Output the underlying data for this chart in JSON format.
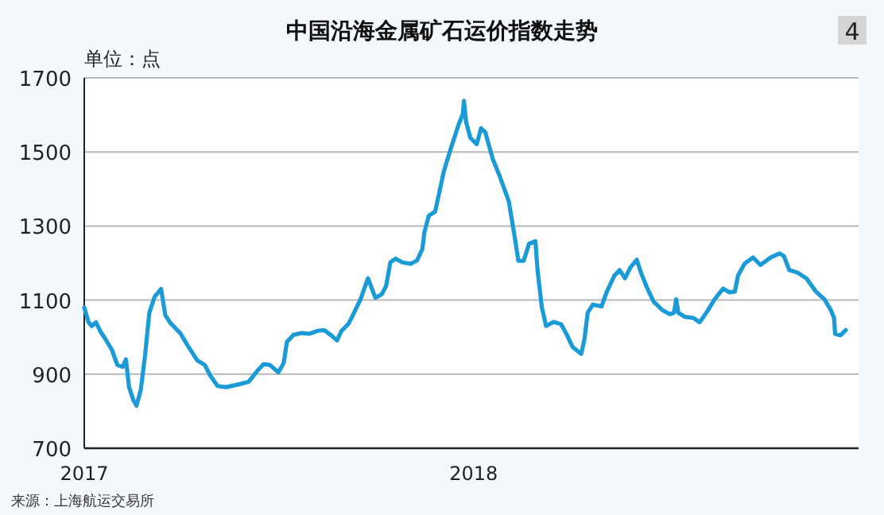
{
  "chart_data": {
    "type": "line",
    "title": "中国沿海金属矿石运价指数走势",
    "ylabel": "单位：点",
    "annotations": [
      "4",
      "来源：上海航运交易所"
    ],
    "x": [
      "2017-01-01",
      "2017-01-05",
      "2017-01-08",
      "2017-01-12",
      "2017-01-16",
      "2017-01-21",
      "2017-01-27",
      "2017-02-01",
      "2017-02-06",
      "2017-02-09",
      "2017-02-12",
      "2017-02-16",
      "2017-02-19",
      "2017-02-23",
      "2017-02-27",
      "2017-03-03",
      "2017-03-08",
      "2017-03-14",
      "2017-03-18",
      "2017-03-23",
      "2017-04-01",
      "2017-04-08",
      "2017-04-17",
      "2017-04-24",
      "2017-04-29",
      "2017-05-06",
      "2017-05-14",
      "2017-05-25",
      "2017-06-04",
      "2017-06-12",
      "2017-06-18",
      "2017-06-24",
      "2017-07-02",
      "2017-07-07",
      "2017-07-10",
      "2017-07-16",
      "2017-07-24",
      "2017-07-31",
      "2017-08-08",
      "2017-08-14",
      "2017-08-20",
      "2017-08-26",
      "2017-08-30",
      "2017-09-06",
      "2017-09-11",
      "2017-09-17",
      "2017-09-24",
      "2017-10-01",
      "2017-10-07",
      "2017-10-11",
      "2017-10-15",
      "2017-10-20",
      "2017-10-26",
      "2017-11-03",
      "2017-11-09",
      "2017-11-14",
      "2017-11-16",
      "2017-11-20",
      "2017-11-26",
      "2017-12-04",
      "2017-12-10",
      "2017-12-18",
      "2017-12-22",
      "2017-12-23",
      "2017-12-25",
      "2017-12-29",
      "2018-01-04",
      "2018-01-08",
      "2018-01-12",
      "2018-01-19",
      "2018-01-26",
      "2018-02-03",
      "2018-02-08",
      "2018-02-12",
      "2018-02-17",
      "2018-02-22",
      "2018-02-28",
      "2018-03-02",
      "2018-03-06",
      "2018-03-10",
      "2018-03-17",
      "2018-03-24",
      "2018-03-29",
      "2018-04-04",
      "2018-04-12",
      "2018-04-15",
      "2018-04-18",
      "2018-04-23",
      "2018-05-01",
      "2018-05-06",
      "2018-05-13",
      "2018-05-18",
      "2018-05-23",
      "2018-05-28",
      "2018-06-03",
      "2018-06-07",
      "2018-06-13",
      "2018-06-19",
      "2018-06-27",
      "2018-07-04",
      "2018-07-08",
      "2018-07-10",
      "2018-07-12",
      "2018-07-18",
      "2018-07-26",
      "2018-08-01",
      "2018-08-08",
      "2018-08-15",
      "2018-08-23",
      "2018-08-29",
      "2018-09-03",
      "2018-09-06",
      "2018-09-12",
      "2018-09-20",
      "2018-09-27",
      "2018-10-07",
      "2018-10-15",
      "2018-10-19",
      "2018-10-24",
      "2018-11-01",
      "2018-11-09",
      "2018-11-18",
      "2018-11-26",
      "2018-12-02",
      "2018-12-05",
      "2018-12-06",
      "2018-12-11",
      "2018-12-16"
    ],
    "series": [
      {
        "color": "#1a9ad6",
        "values": [
          1080,
          1040,
          1030,
          1040,
          1016,
          994,
          965,
          925,
          920,
          940,
          865,
          830,
          815,
          858,
          951,
          1066,
          1109,
          1130,
          1059,
          1037,
          1011,
          977,
          937,
          925,
          897,
          868,
          865,
          872,
          879,
          908,
          927,
          925,
          905,
          930,
          987,
          1006,
          1011,
          1009,
          1017,
          1019,
          1006,
          991,
          1016,
          1037,
          1066,
          1102,
          1159,
          1106,
          1116,
          1138,
          1202,
          1212,
          1202,
          1198,
          1207,
          1238,
          1284,
          1328,
          1339,
          1446,
          1503,
          1574,
          1603,
          1638,
          1581,
          1538,
          1521,
          1564,
          1553,
          1481,
          1431,
          1367,
          1281,
          1206,
          1206,
          1252,
          1259,
          1181,
          1081,
          1030,
          1041,
          1035,
          1009,
          973,
          955,
          995,
          1066,
          1088,
          1083,
          1123,
          1166,
          1181,
          1159,
          1188,
          1209,
          1174,
          1131,
          1095,
          1073,
          1062,
          1066,
          1102,
          1066,
          1055,
          1052,
          1040,
          1069,
          1102,
          1131,
          1121,
          1123,
          1166,
          1198,
          1215,
          1195,
          1216,
          1226,
          1219,
          1181,
          1174,
          1159,
          1123,
          1102,
          1073,
          1052,
          1009,
          1005,
          1019
        ]
      }
    ],
    "xlim": [
      "2017-01-01",
      "2018-12-28"
    ],
    "xticks": [
      {
        "value": "2017-01-01",
        "label": "2017"
      },
      {
        "value": "2018-01-01",
        "label": "2018"
      }
    ],
    "ylim": [
      700,
      1700
    ],
    "yticks": [
      700,
      900,
      1100,
      1300,
      1500,
      1700
    ],
    "grid": "y"
  }
}
